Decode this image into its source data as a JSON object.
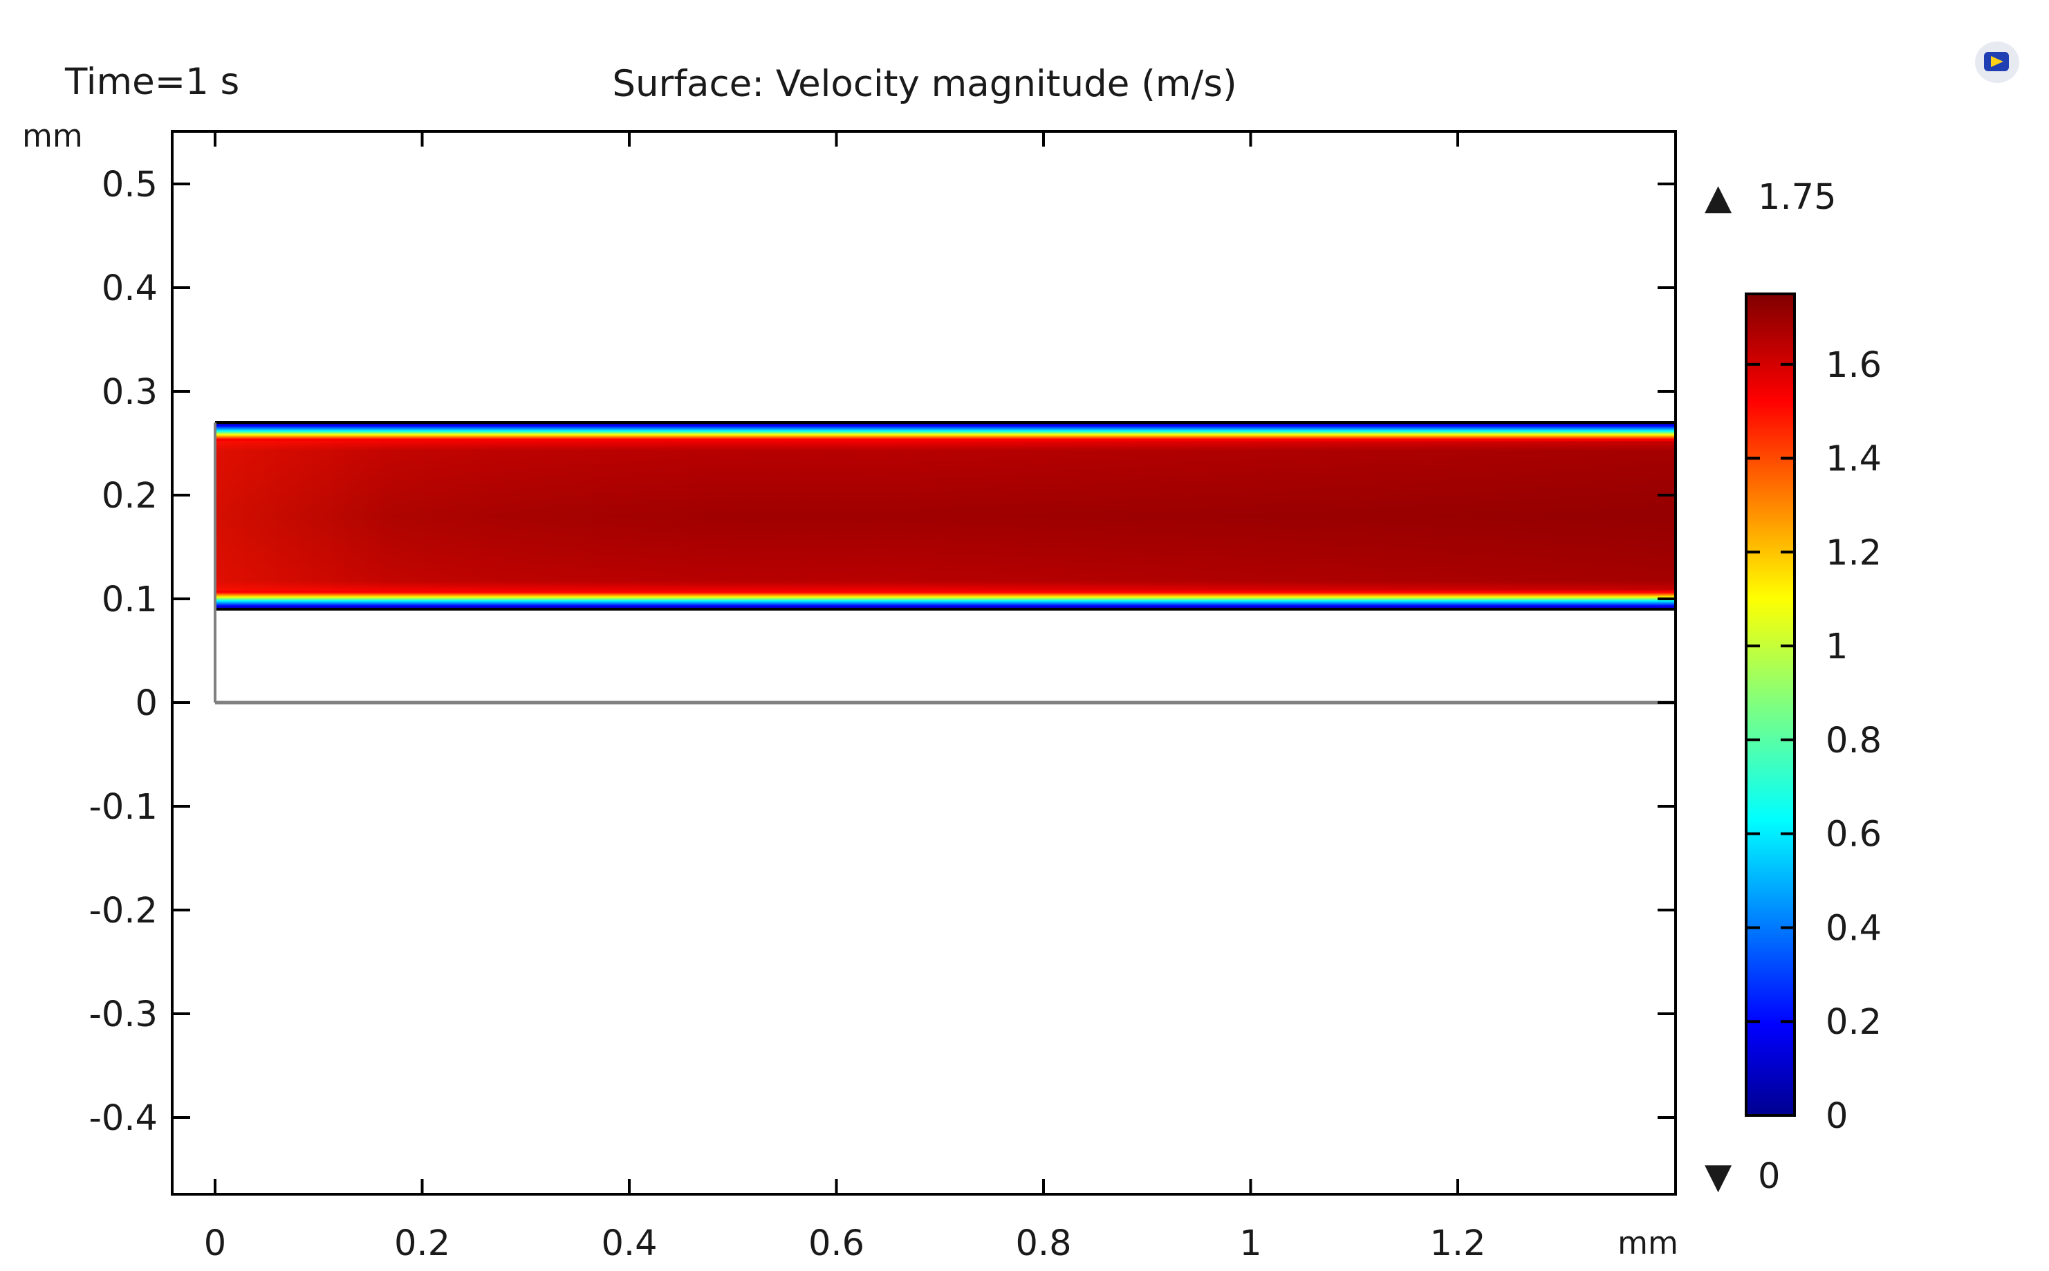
{
  "chart_data": {
    "type": "heatmap",
    "time_label": "Time=1 s",
    "title": "Surface: Velocity magnitude (m/s)",
    "x_unit": "mm",
    "y_unit": "mm",
    "xlim": [
      -0.04,
      1.42
    ],
    "ylim": [
      -0.48,
      0.55
    ],
    "x_ticks": [
      0,
      0.2,
      0.4,
      0.6,
      0.8,
      1,
      1.2
    ],
    "x_tick_labels": [
      "0",
      "0.2",
      "0.4",
      "0.6",
      "0.8",
      "1",
      "1.2"
    ],
    "y_ticks": [
      0.5,
      0.4,
      0.3,
      0.2,
      0.1,
      0,
      -0.1,
      -0.2,
      -0.3,
      -0.4
    ],
    "y_tick_labels": [
      "0.5",
      "0.4",
      "0.3",
      "0.2",
      "0.1",
      "0",
      "-0.1",
      "-0.2",
      "-0.3",
      "-0.4"
    ],
    "domain": {
      "outer_x": [
        0,
        1.42
      ],
      "outer_y": [
        0,
        0.27
      ],
      "channel_y": [
        0.09,
        0.27
      ]
    },
    "velocity_field": {
      "quantity": "Velocity magnitude",
      "unit": "m/s",
      "inlet_core": 1.55,
      "outlet_core": 1.75,
      "wall_value": 0
    },
    "colorbar": {
      "max_label": "1.75",
      "min_label": "0",
      "max": 1.75,
      "min": 0,
      "ticks": [
        1.6,
        1.4,
        1.2,
        1,
        0.8,
        0.6,
        0.4,
        0.2,
        0
      ],
      "tick_labels": [
        "1.6",
        "1.4",
        "1.2",
        "1",
        "0.8",
        "0.6",
        "0.4",
        "0.2",
        "0"
      ],
      "max_marker": "▲",
      "min_marker": "▼"
    }
  },
  "colors": {
    "walls": "#808080",
    "frame": "#000000"
  },
  "icons": {
    "logo": "comsol-logo-icon"
  }
}
